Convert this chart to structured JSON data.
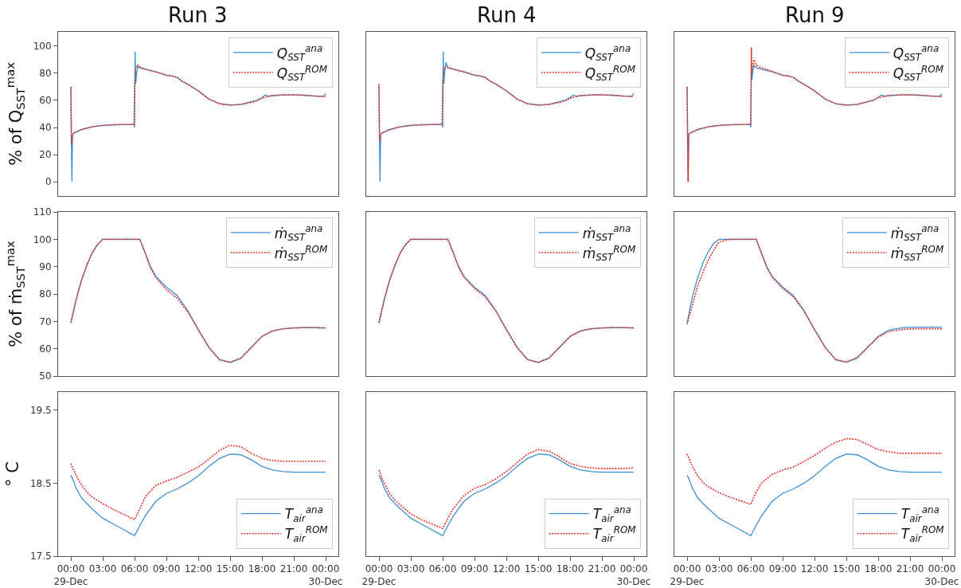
{
  "chart_data": [
    {
      "type": "line",
      "title": "Run 3",
      "ylabel": "% of Q$_{SST}$$^{max}$",
      "xlim": [
        -1.2,
        25.2
      ],
      "ylim": [
        -10.5,
        110.5
      ],
      "yticks": [
        0,
        20,
        40,
        60,
        80,
        100
      ],
      "tick_labels": "y",
      "legend": "top right",
      "grid": false,
      "marker": "none",
      "series": [
        {
          "name": "Q$_{SST}$$^{ana}$",
          "color": "#3d8fd1",
          "line_style": "solid",
          "x": [
            0,
            0.05,
            0.1,
            0.15,
            0.3,
            1,
            2,
            3,
            4,
            5,
            5.95,
            6,
            6.05,
            6.1,
            6.2,
            6.3,
            6.5,
            7,
            8,
            9,
            9.5,
            10,
            10.5,
            11,
            12,
            13,
            14,
            15,
            16,
            17,
            17.5,
            18,
            18.3,
            18.6,
            19,
            20,
            21,
            22,
            23,
            23.8,
            24
          ],
          "values": [
            70,
            30,
            0,
            35,
            36,
            38.5,
            40.5,
            41.5,
            42,
            42.2,
            42.3,
            40,
            96,
            72,
            80,
            85,
            84,
            83,
            81,
            78.5,
            78,
            77,
            74,
            72,
            67,
            61,
            57.5,
            56.5,
            57,
            59,
            60,
            62,
            64,
            63,
            63.5,
            64,
            64,
            63.8,
            63.2,
            63,
            65
          ]
        },
        {
          "name": "Q$_{SST}$$^{ROM}$",
          "color": "#e8302a",
          "line_style": "dashed",
          "x": [
            0,
            0.05,
            0.15,
            0.3,
            1,
            2,
            3,
            4,
            5,
            5.95,
            6,
            6.1,
            6.3,
            6.5,
            7,
            8,
            9,
            9.5,
            10,
            10.5,
            11,
            12,
            13,
            14,
            15,
            16,
            17,
            17.5,
            18,
            18.6,
            19,
            20,
            21,
            22,
            23,
            24
          ],
          "values": [
            70,
            28,
            35,
            36,
            38.5,
            40.5,
            41.5,
            42,
            42.2,
            42.3,
            70,
            84,
            86,
            84.5,
            83,
            81,
            78.5,
            78,
            77,
            74,
            72,
            67,
            61,
            57.5,
            56.5,
            57,
            58.5,
            59.5,
            61.5,
            63,
            63.5,
            64,
            64,
            63.8,
            63.2,
            62.8
          ]
        }
      ]
    },
    {
      "type": "line",
      "title": "Run 4",
      "xlim": [
        -1.2,
        25.2
      ],
      "ylim": [
        -10.5,
        110.5
      ],
      "tick_labels": false,
      "legend": "top right",
      "grid": false,
      "marker": "none",
      "series": [
        {
          "name": "Q$_{SST}$$^{ana}$",
          "color": "#3d8fd1",
          "line_style": "solid",
          "x": [
            0,
            0.05,
            0.1,
            0.15,
            0.3,
            1,
            2,
            3,
            4,
            5,
            5.95,
            6,
            6.05,
            6.1,
            6.2,
            6.3,
            6.5,
            7,
            8,
            9,
            9.5,
            10,
            10.5,
            11,
            12,
            13,
            14,
            15,
            16,
            17,
            17.5,
            18,
            18.3,
            18.6,
            19,
            20,
            21,
            22,
            23,
            23.8,
            24
          ],
          "values": [
            71,
            30,
            0,
            35,
            36,
            38.5,
            40.5,
            41.5,
            42,
            42.2,
            42.3,
            40,
            96,
            72,
            82,
            88,
            84,
            83,
            81,
            78.5,
            78,
            77,
            74,
            72,
            67,
            61,
            57.5,
            56.5,
            57,
            59,
            60,
            62,
            64,
            63,
            63.5,
            64,
            64,
            63.8,
            63.2,
            63,
            65
          ]
        },
        {
          "name": "Q$_{SST}$$^{ROM}$",
          "color": "#e8302a",
          "line_style": "dashed",
          "x": [
            0,
            0.05,
            0.15,
            0.3,
            1,
            2,
            3,
            4,
            5,
            5.95,
            6,
            6.1,
            6.3,
            6.5,
            7,
            8,
            9,
            9.5,
            10,
            10.5,
            11,
            12,
            13,
            14,
            15,
            16,
            17,
            17.5,
            18,
            18.6,
            19,
            20,
            21,
            22,
            23,
            24
          ],
          "values": [
            72,
            30,
            35,
            36,
            38.5,
            40.5,
            41.5,
            42,
            42.2,
            42.3,
            72,
            83,
            85,
            84.5,
            83,
            81,
            78.5,
            78,
            77,
            74,
            72,
            67,
            61,
            57.5,
            56.5,
            57,
            58.5,
            59.5,
            61.5,
            63,
            63.5,
            64,
            64,
            63.8,
            63.2,
            62.8
          ]
        }
      ]
    },
    {
      "type": "line",
      "title": "Run 9",
      "xlim": [
        -1.2,
        25.2
      ],
      "ylim": [
        -10.5,
        110.5
      ],
      "tick_labels": false,
      "legend": "top right",
      "grid": false,
      "marker": "none",
      "series": [
        {
          "name": "Q$_{SST}$$^{ana}$",
          "color": "#3d8fd1",
          "line_style": "solid",
          "x": [
            0,
            0.05,
            0.1,
            0.15,
            0.3,
            1,
            2,
            3,
            4,
            5,
            5.95,
            6,
            6.05,
            6.1,
            6.2,
            6.3,
            6.5,
            7,
            8,
            9,
            9.5,
            10,
            10.5,
            11,
            12,
            13,
            14,
            15,
            16,
            17,
            17.5,
            18,
            18.3,
            18.6,
            19,
            20,
            21,
            22,
            23,
            23.8,
            24
          ],
          "values": [
            70,
            30,
            0,
            35,
            36,
            38.5,
            40.5,
            41.5,
            42,
            42.2,
            42.3,
            40,
            87,
            75,
            82,
            86,
            84,
            83,
            81,
            78.5,
            78,
            77,
            74,
            72,
            67,
            61,
            57.5,
            56.5,
            57,
            59,
            60,
            62,
            64,
            63,
            63.5,
            64,
            64,
            63.8,
            63.2,
            63,
            65
          ]
        },
        {
          "name": "Q$_{SST}$$^{ROM}$",
          "color": "#e8302a",
          "line_style": "dashed",
          "x": [
            0,
            0.05,
            0.1,
            0.15,
            0.3,
            1,
            2,
            3,
            4,
            5,
            5.95,
            6,
            6.05,
            6.1,
            6.2,
            6.3,
            6.5,
            7,
            8,
            9,
            9.5,
            10,
            10.5,
            11,
            12,
            13,
            14,
            15,
            16,
            17,
            17.5,
            18,
            18.6,
            19,
            20,
            21,
            22,
            23,
            24
          ],
          "values": [
            70,
            30,
            0,
            35,
            36,
            38.5,
            40.5,
            41.5,
            42,
            42.2,
            42.3,
            42.3,
            99,
            80,
            86,
            90,
            86,
            84,
            81.5,
            78.5,
            78,
            77,
            74,
            72,
            67,
            61,
            57.5,
            56.5,
            57,
            59,
            60,
            62,
            63,
            63.5,
            64,
            64,
            63.8,
            63.2,
            62.8
          ]
        }
      ]
    },
    {
      "type": "line",
      "ylabel": "% of ṁ$_{SST}$$^{max}$",
      "xlim": [
        -1.2,
        25.2
      ],
      "ylim": [
        50,
        110
      ],
      "yticks": [
        50,
        60,
        70,
        80,
        90,
        100,
        110
      ],
      "tick_labels": "y",
      "legend": "top right",
      "grid": false,
      "marker": "none",
      "series": [
        {
          "name": "ṁ$_{SST}$$^{ana}$",
          "color": "#3d8fd1",
          "line_style": "solid",
          "x": [
            0,
            0.5,
            1,
            1.5,
            2,
            2.5,
            3,
            4,
            5,
            6,
            6.5,
            7,
            7.5,
            8,
            9,
            10,
            11,
            12,
            13,
            14,
            15,
            16,
            17,
            18,
            19,
            20,
            21,
            22,
            23,
            24
          ],
          "values": [
            69.5,
            78,
            85,
            90.5,
            95,
            98,
            100,
            100,
            100,
            100,
            100,
            95,
            90,
            86.5,
            82.5,
            79.5,
            74,
            67,
            60.5,
            56,
            55,
            56.5,
            60.5,
            64.5,
            66.5,
            67.3,
            67.6,
            67.7,
            67.7,
            67.6
          ]
        },
        {
          "name": "ṁ$_{SST}$$^{ROM}$",
          "color": "#e8302a",
          "line_style": "dashed",
          "x": [
            0,
            0.5,
            1,
            1.5,
            2,
            2.5,
            3,
            4,
            5,
            6,
            6.5,
            7,
            7.5,
            8,
            9,
            10,
            11,
            12,
            13,
            14,
            15,
            16,
            17,
            18,
            19,
            20,
            21,
            22,
            23,
            24
          ],
          "values": [
            69.5,
            78,
            85,
            90.5,
            95,
            98,
            100,
            100,
            100,
            100,
            100,
            95,
            89.5,
            86,
            81.5,
            78.5,
            73.5,
            67,
            60.5,
            56,
            55,
            56.5,
            60.5,
            64.5,
            66.5,
            67.3,
            67.6,
            67.7,
            67.7,
            67.6
          ]
        }
      ]
    },
    {
      "type": "line",
      "xlim": [
        -1.2,
        25.2
      ],
      "ylim": [
        50,
        110
      ],
      "tick_labels": false,
      "legend": "top right",
      "grid": false,
      "marker": "none",
      "series": [
        {
          "name": "ṁ$_{SST}$$^{ana}$",
          "color": "#3d8fd1",
          "line_style": "solid",
          "x": [
            0,
            0.5,
            1,
            1.5,
            2,
            2.5,
            3,
            4,
            5,
            6,
            6.5,
            7,
            7.5,
            8,
            9,
            10,
            11,
            12,
            13,
            14,
            15,
            16,
            17,
            18,
            19,
            20,
            21,
            22,
            23,
            24
          ],
          "values": [
            69.5,
            78,
            85,
            90.5,
            95,
            98,
            100,
            100,
            100,
            100,
            100,
            95,
            90,
            86.5,
            82.5,
            79.5,
            74,
            67,
            60.5,
            56,
            55,
            56.5,
            60.5,
            64.5,
            66.5,
            67.3,
            67.6,
            67.7,
            67.7,
            67.6
          ]
        },
        {
          "name": "ṁ$_{SST}$$^{ROM}$",
          "color": "#e8302a",
          "line_style": "dashed",
          "x": [
            0,
            0.5,
            1,
            1.5,
            2,
            2.5,
            3,
            4,
            5,
            6,
            6.5,
            7,
            7.5,
            8,
            9,
            10,
            11,
            12,
            13,
            14,
            15,
            16,
            17,
            18,
            19,
            20,
            21,
            22,
            23,
            24
          ],
          "values": [
            69.5,
            78,
            85,
            90.5,
            95,
            98,
            100,
            100,
            100,
            100,
            100,
            95,
            89.8,
            86.2,
            82,
            79,
            73.8,
            67,
            60.5,
            56,
            55,
            56.5,
            60.5,
            64.5,
            66.5,
            67.3,
            67.6,
            67.7,
            67.7,
            67.6
          ]
        }
      ]
    },
    {
      "type": "line",
      "xlim": [
        -1.2,
        25.2
      ],
      "ylim": [
        50,
        110
      ],
      "tick_labels": false,
      "legend": "top right",
      "grid": false,
      "marker": "none",
      "series": [
        {
          "name": "ṁ$_{SST}$$^{ana}$",
          "color": "#3d8fd1",
          "line_style": "solid",
          "x": [
            0,
            0.5,
            1,
            1.5,
            2,
            2.5,
            3,
            4,
            5,
            6,
            6.5,
            7,
            7.5,
            8,
            9,
            10,
            11,
            12,
            13,
            14,
            15,
            16,
            17,
            18,
            19,
            20,
            21,
            22,
            23,
            24
          ],
          "values": [
            69.5,
            79,
            86,
            91.5,
            95.5,
            98.5,
            100,
            100,
            100,
            100,
            100,
            95,
            90,
            86.5,
            82.5,
            79.5,
            74,
            67,
            60.5,
            56,
            55,
            56.5,
            60.5,
            64.5,
            66.8,
            67.5,
            67.8,
            67.9,
            67.9,
            67.8
          ]
        },
        {
          "name": "ṁ$_{SST}$$^{ROM}$",
          "color": "#e8302a",
          "line_style": "dashed",
          "x": [
            0,
            0.5,
            1,
            1.5,
            2,
            2.5,
            3,
            4,
            5,
            6,
            6.5,
            7,
            7.5,
            8,
            9,
            10,
            11,
            12,
            13,
            14,
            15,
            16,
            17,
            18,
            19,
            20,
            21,
            22,
            23,
            24
          ],
          "values": [
            69,
            76,
            83,
            88,
            92.5,
            96,
            99,
            100,
            100,
            100,
            100,
            95,
            89.8,
            86.2,
            82,
            79,
            73.8,
            67,
            60.5,
            56,
            55.2,
            56.8,
            60.5,
            64.2,
            66.3,
            66.9,
            67.2,
            67.3,
            67.3,
            67.2
          ]
        }
      ]
    },
    {
      "type": "line",
      "ylabel": "° C",
      "xlim": [
        -1.2,
        25.2
      ],
      "ylim": [
        17.5,
        19.75
      ],
      "yticks": [
        17.5,
        18.5,
        19.5
      ],
      "xticks": [
        {
          "value": 0,
          "label": "00:00\n29-Dec"
        },
        {
          "value": 3,
          "label": "03:00"
        },
        {
          "value": 6,
          "label": "06:00"
        },
        {
          "value": 9,
          "label": "09:00"
        },
        {
          "value": 12,
          "label": "12:00"
        },
        {
          "value": 15,
          "label": "15:00"
        },
        {
          "value": 18,
          "label": "18:00"
        },
        {
          "value": 21,
          "label": "21:00"
        },
        {
          "value": 24,
          "label": "00:00\n30-Dec"
        }
      ],
      "legend": "bottom right",
      "grid": false,
      "marker": "none",
      "series": [
        {
          "name": "T$_{air}$$^{ana}$",
          "color": "#3d8fd1",
          "line_style": "solid",
          "x": [
            0,
            0.2,
            0.5,
            1,
            1.5,
            2,
            3,
            4,
            5,
            6,
            6.5,
            7,
            8,
            9,
            10,
            11,
            12,
            13,
            14,
            15,
            16,
            17,
            18,
            19,
            20,
            21,
            22,
            23,
            24
          ],
          "values": [
            18.61,
            18.55,
            18.43,
            18.3,
            18.22,
            18.15,
            18.02,
            17.94,
            17.86,
            17.78,
            17.92,
            18.05,
            18.25,
            18.36,
            18.42,
            18.5,
            18.6,
            18.73,
            18.84,
            18.9,
            18.89,
            18.82,
            18.73,
            18.68,
            18.66,
            18.65,
            18.65,
            18.65,
            18.65
          ]
        },
        {
          "name": "T$_{air}$$^{ROM}$",
          "color": "#e8302a",
          "line_style": "dashed",
          "x": [
            0,
            0.2,
            0.5,
            1,
            1.5,
            2,
            3,
            4,
            5,
            6,
            6.5,
            7,
            8,
            9,
            10,
            11,
            12,
            13,
            14,
            15,
            16,
            17,
            18,
            19,
            20,
            21,
            22,
            23,
            24
          ],
          "values": [
            18.77,
            18.7,
            18.6,
            18.48,
            18.38,
            18.31,
            18.22,
            18.14,
            18.07,
            18.0,
            18.15,
            18.31,
            18.47,
            18.53,
            18.58,
            18.65,
            18.72,
            18.83,
            18.95,
            19.02,
            19.0,
            18.91,
            18.84,
            18.81,
            18.8,
            18.8,
            18.8,
            18.8,
            18.8
          ]
        }
      ]
    },
    {
      "type": "line",
      "xlim": [
        -1.2,
        25.2
      ],
      "ylim": [
        17.5,
        19.75
      ],
      "xticks": [
        {
          "value": 0,
          "label": "00:00\n29-Dec"
        },
        {
          "value": 3,
          "label": "03:00"
        },
        {
          "value": 6,
          "label": "06:00"
        },
        {
          "value": 9,
          "label": "09:00"
        },
        {
          "value": 12,
          "label": "12:00"
        },
        {
          "value": 15,
          "label": "15:00"
        },
        {
          "value": 18,
          "label": "18:00"
        },
        {
          "value": 21,
          "label": "21:00"
        },
        {
          "value": 24,
          "label": "00:00\n30-Dec"
        }
      ],
      "tick_labels": "x",
      "legend": "bottom right",
      "grid": false,
      "marker": "none",
      "series": [
        {
          "name": "T$_{air}$$^{ana}$",
          "color": "#3d8fd1",
          "line_style": "solid",
          "x": [
            0,
            0.2,
            0.5,
            1,
            1.5,
            2,
            3,
            4,
            5,
            6,
            6.5,
            7,
            8,
            9,
            10,
            11,
            12,
            13,
            14,
            15,
            16,
            17,
            18,
            19,
            20,
            21,
            22,
            23,
            24
          ],
          "values": [
            18.61,
            18.55,
            18.43,
            18.3,
            18.22,
            18.15,
            18.02,
            17.94,
            17.86,
            17.78,
            17.92,
            18.05,
            18.25,
            18.36,
            18.42,
            18.5,
            18.6,
            18.73,
            18.84,
            18.9,
            18.89,
            18.82,
            18.73,
            18.68,
            18.66,
            18.65,
            18.65,
            18.65,
            18.65
          ]
        },
        {
          "name": "T$_{air}$$^{ROM}$",
          "color": "#e8302a",
          "line_style": "dashed",
          "x": [
            0,
            0.2,
            0.5,
            1,
            1.5,
            2,
            3,
            4,
            5,
            6,
            6.5,
            7,
            8,
            9,
            10,
            11,
            12,
            13,
            14,
            15,
            16,
            17,
            18,
            19,
            20,
            21,
            22,
            23,
            24
          ],
          "values": [
            18.68,
            18.6,
            18.5,
            18.36,
            18.27,
            18.2,
            18.08,
            18.0,
            17.94,
            17.88,
            18.02,
            18.15,
            18.33,
            18.43,
            18.48,
            18.56,
            18.66,
            18.78,
            18.9,
            18.96,
            18.94,
            18.86,
            18.77,
            18.73,
            18.71,
            18.7,
            18.7,
            18.7,
            18.71
          ]
        }
      ]
    },
    {
      "type": "line",
      "xlim": [
        -1.2,
        25.2
      ],
      "ylim": [
        17.5,
        19.75
      ],
      "xticks": [
        {
          "value": 0,
          "label": "00:00\n29-Dec"
        },
        {
          "value": 3,
          "label": "03:00"
        },
        {
          "value": 6,
          "label": "06:00"
        },
        {
          "value": 9,
          "label": "09:00"
        },
        {
          "value": 12,
          "label": "12:00"
        },
        {
          "value": 15,
          "label": "15:00"
        },
        {
          "value": 18,
          "label": "18:00"
        },
        {
          "value": 21,
          "label": "21:00"
        },
        {
          "value": 24,
          "label": "00:00\n30-Dec"
        }
      ],
      "tick_labels": "x",
      "legend": "bottom right",
      "grid": false,
      "marker": "none",
      "series": [
        {
          "name": "T$_{air}$$^{ana}$",
          "color": "#3d8fd1",
          "line_style": "solid",
          "x": [
            0,
            0.2,
            0.5,
            1,
            1.5,
            2,
            3,
            4,
            5,
            6,
            6.5,
            7,
            8,
            9,
            10,
            11,
            12,
            13,
            14,
            15,
            16,
            17,
            18,
            19,
            20,
            21,
            22,
            23,
            24
          ],
          "values": [
            18.61,
            18.55,
            18.43,
            18.3,
            18.22,
            18.15,
            18.02,
            17.94,
            17.86,
            17.78,
            17.92,
            18.05,
            18.25,
            18.36,
            18.42,
            18.5,
            18.6,
            18.73,
            18.84,
            18.9,
            18.89,
            18.82,
            18.73,
            18.68,
            18.66,
            18.65,
            18.65,
            18.65,
            18.65
          ]
        },
        {
          "name": "T$_{air}$$^{ROM}$",
          "color": "#e8302a",
          "line_style": "dashed",
          "x": [
            0,
            0.2,
            0.5,
            1,
            1.5,
            2,
            3,
            4,
            5,
            6,
            6.5,
            7,
            8,
            9,
            10,
            11,
            12,
            13,
            14,
            15,
            16,
            17,
            18,
            19,
            20,
            21,
            22,
            23,
            24
          ],
          "values": [
            18.9,
            18.83,
            18.73,
            18.6,
            18.51,
            18.45,
            18.37,
            18.31,
            18.26,
            18.21,
            18.38,
            18.5,
            18.62,
            18.68,
            18.72,
            18.8,
            18.88,
            18.98,
            19.06,
            19.11,
            19.1,
            19.03,
            18.96,
            18.93,
            18.91,
            18.91,
            18.91,
            18.91,
            18.91
          ]
        }
      ]
    }
  ]
}
